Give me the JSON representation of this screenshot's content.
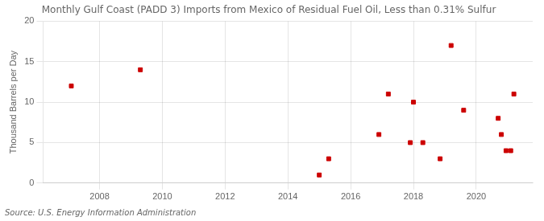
{
  "chart_data": {
    "type": "scatter",
    "title": "Monthly Gulf Coast (PADD 3) Imports from Mexico of Residual Fuel Oil, Less than 0.31% Sulfur",
    "ylabel": "Thousand Barrels per Day",
    "annotations": [
      "Source: U.S. Energy Information Administration"
    ],
    "x": [
      2007.1,
      2009.3,
      2015.0,
      2015.3,
      2016.9,
      2017.2,
      2017.9,
      2018.0,
      2018.3,
      2018.85,
      2019.2,
      2019.6,
      2020.7,
      2020.8,
      2020.95,
      2021.1,
      2021.2
    ],
    "values": [
      12,
      14,
      1,
      3,
      6,
      11,
      5,
      10,
      5,
      3,
      17,
      9,
      8,
      6,
      4,
      4,
      11
    ],
    "color": "#cc0000",
    "marker": "square",
    "xlim": [
      2006.2,
      2021.8
    ],
    "ylim": [
      0,
      20
    ],
    "xticks": [
      2008,
      2010,
      2012,
      2014,
      2016,
      2018,
      2020
    ],
    "yticks": [
      0,
      5,
      10,
      15,
      20
    ],
    "grid": true
  }
}
